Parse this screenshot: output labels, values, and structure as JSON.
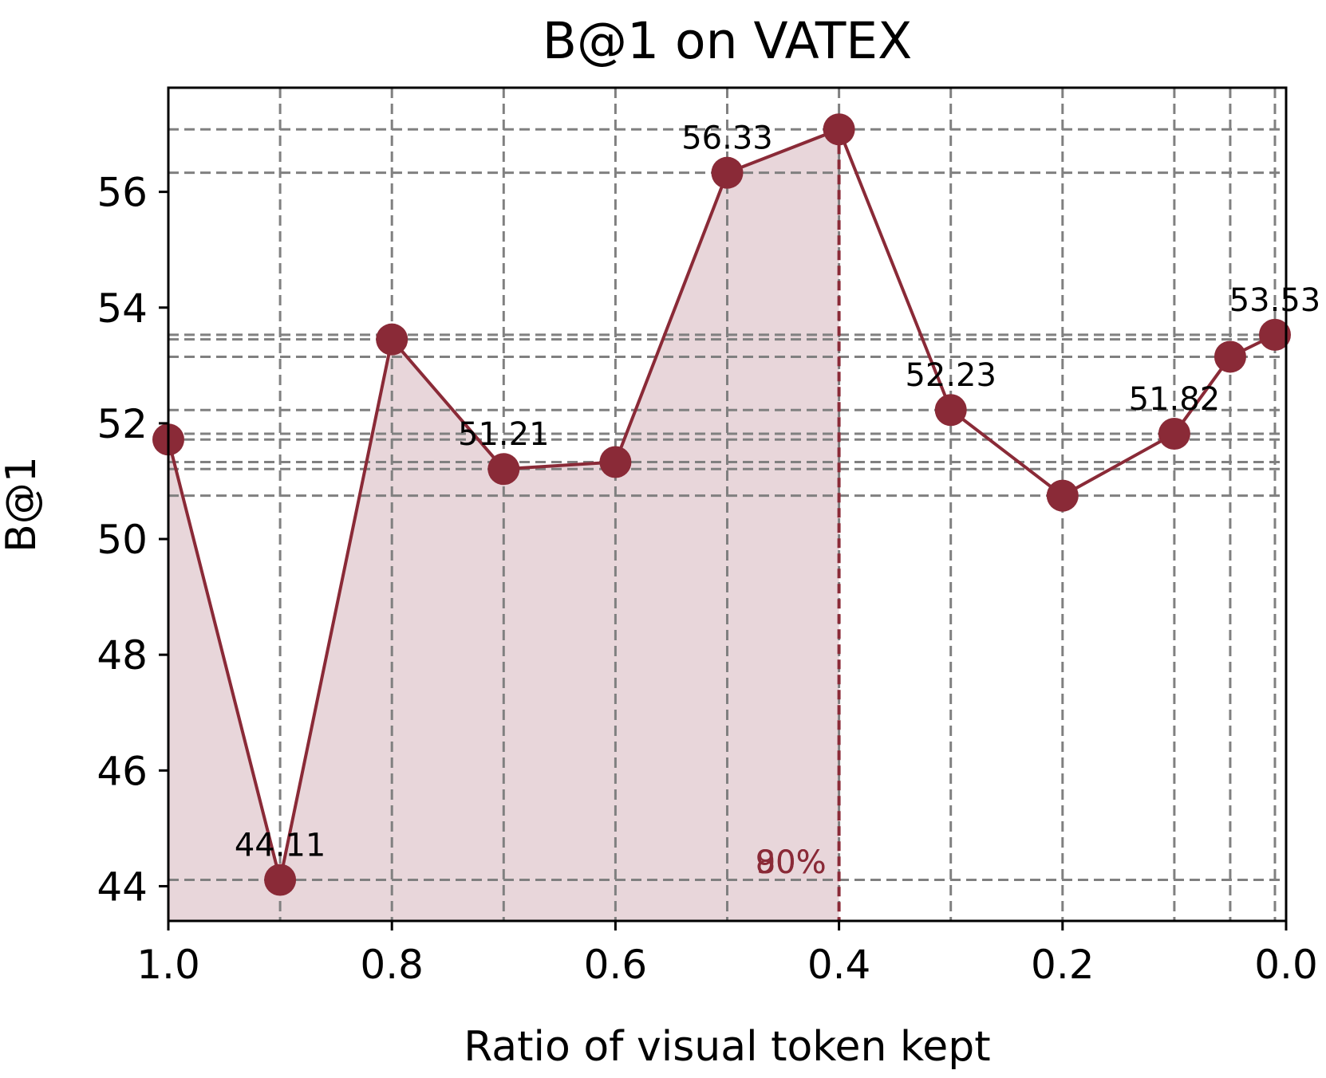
{
  "chart_data": {
    "type": "line",
    "title": "B@1 on VATEX",
    "xlabel": "Ratio of visual token kept",
    "ylabel": "B@1",
    "xlim": [
      1.0,
      0.0
    ],
    "ylim": [
      43.4,
      57.8
    ],
    "x_ticks": [
      "1.0",
      "0.8",
      "0.6",
      "0.4",
      "0.2",
      "0.0"
    ],
    "y_ticks": [
      "44",
      "46",
      "48",
      "50",
      "52",
      "54",
      "56"
    ],
    "x": [
      1.0,
      0.9,
      0.8,
      0.7,
      0.6,
      0.5,
      0.4,
      0.3,
      0.2,
      0.1,
      0.05,
      0.01
    ],
    "series": [
      {
        "values": [
          51.72,
          44.11,
          53.45,
          51.21,
          51.33,
          56.33,
          57.08,
          52.23,
          50.75,
          51.82,
          53.15,
          53.53
        ]
      }
    ],
    "data_labels": [
      {
        "x": 0.9,
        "y": 44.11,
        "text": "44.11"
      },
      {
        "x": 0.7,
        "y": 51.21,
        "text": "51.21"
      },
      {
        "x": 0.5,
        "y": 56.33,
        "text": "56.33"
      },
      {
        "x": 0.3,
        "y": 52.23,
        "text": "52.23"
      },
      {
        "x": 0.1,
        "y": 51.82,
        "text": "51.82"
      },
      {
        "x": 0.01,
        "y": 53.53,
        "text": "53.53"
      }
    ],
    "annotation": {
      "x": 0.4,
      "text": "80%",
      "overlay_text": "90%"
    },
    "grid": true,
    "grid_style": "dashed",
    "colors": {
      "line": "#8a2a37",
      "fill": "#e8d6da",
      "grid": "#808080"
    }
  }
}
